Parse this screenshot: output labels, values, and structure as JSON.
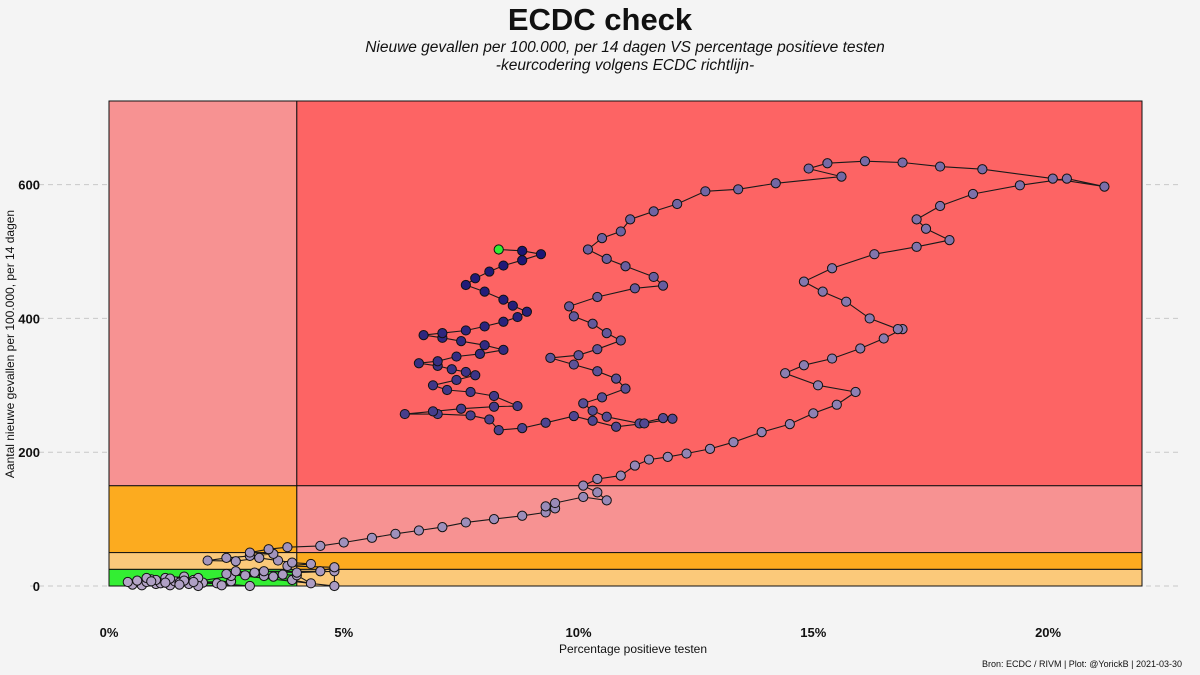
{
  "chart_data": {
    "type": "scatter",
    "title": "ECDC check",
    "subtitle_lines": [
      "Nieuwe gevallen per 100.000, per 14 dagen  VS  percentage positieve testen",
      "-keurcodering volgens ECDC richtlijn-"
    ],
    "xlabel": "Percentage positieve testen",
    "ylabel": "Aantal nieuwe gevallen per 100.000, per 14 dagen",
    "caption": "Bron: ECDC / RIVM | Plot: @YorickB |  2021-03-30",
    "xlim": [
      0,
      22
    ],
    "ylim": [
      0,
      725
    ],
    "x_ticks": [
      0,
      5,
      10,
      15,
      20
    ],
    "x_tick_labels": [
      "0%",
      "5%",
      "10%",
      "15%",
      "20%"
    ],
    "y_ticks": [
      0,
      200,
      400,
      600
    ],
    "y_tick_labels": [
      "0",
      "200",
      "400",
      "600"
    ],
    "grid": "horizontal dashed",
    "background_zones": [
      {
        "x": [
          0,
          4
        ],
        "y": [
          0,
          25
        ],
        "color": "#33ee33"
      },
      {
        "x": [
          0,
          4
        ],
        "y": [
          25,
          50
        ],
        "color": "#fbc97a"
      },
      {
        "x": [
          0,
          4
        ],
        "y": [
          50,
          150
        ],
        "color": "#fcab1f"
      },
      {
        "x": [
          0,
          4
        ],
        "y": [
          150,
          725
        ],
        "color": "#f79292"
      },
      {
        "x": [
          4,
          22
        ],
        "y": [
          0,
          25
        ],
        "color": "#fbc97a"
      },
      {
        "x": [
          4,
          22
        ],
        "y": [
          25,
          50
        ],
        "color": "#fcab1f"
      },
      {
        "x": [
          4,
          22
        ],
        "y": [
          50,
          150
        ],
        "color": "#f79292"
      },
      {
        "x": [
          4,
          22
        ],
        "y": [
          150,
          725
        ],
        "color": "#fd6464"
      }
    ],
    "point_color_start": "#b6a6c8",
    "point_color_end": "#1a1474",
    "latest_point_color": "#33ee33",
    "series": [
      {
        "points": [
          [
            0.5,
            2
          ],
          [
            0.7,
            1
          ],
          [
            1.0,
            3
          ],
          [
            1.3,
            1
          ],
          [
            0.6,
            8
          ],
          [
            0.9,
            10
          ],
          [
            1.2,
            12
          ],
          [
            1.6,
            14
          ],
          [
            0.8,
            6
          ],
          [
            1.4,
            7
          ],
          [
            1.8,
            9
          ],
          [
            2.0,
            5
          ],
          [
            1.1,
            4
          ],
          [
            0.4,
            6
          ],
          [
            1.7,
            3
          ],
          [
            2.3,
            4
          ],
          [
            2.6,
            7
          ],
          [
            1.5,
            5
          ],
          [
            1.9,
            12
          ],
          [
            1.0,
            9
          ],
          [
            1.3,
            11
          ],
          [
            0.8,
            12
          ],
          [
            1.6,
            8
          ],
          [
            3.0,
            0
          ],
          [
            2.4,
            1
          ],
          [
            1.9,
            0
          ],
          [
            1.5,
            2
          ],
          [
            1.2,
            5
          ],
          [
            0.9,
            7
          ],
          [
            1.8,
            6
          ],
          [
            2.6,
            15
          ],
          [
            3.1,
            20
          ],
          [
            2.7,
            22
          ],
          [
            3.5,
            14
          ],
          [
            3.9,
            9
          ],
          [
            4.3,
            4
          ],
          [
            4.0,
            16
          ],
          [
            3.7,
            17
          ],
          [
            3.3,
            15
          ],
          [
            2.9,
            16
          ],
          [
            2.5,
            18
          ],
          [
            4.8,
            0
          ],
          [
            4.8,
            22
          ],
          [
            4.0,
            20
          ],
          [
            3.3,
            22
          ],
          [
            4.5,
            22
          ],
          [
            4.8,
            28
          ],
          [
            3.8,
            30
          ],
          [
            4.3,
            33
          ],
          [
            3.9,
            35
          ],
          [
            3.6,
            38
          ],
          [
            3.2,
            42
          ],
          [
            2.7,
            37
          ],
          [
            2.1,
            38
          ],
          [
            2.5,
            42
          ],
          [
            3.0,
            45
          ],
          [
            3.5,
            48
          ],
          [
            3.0,
            50
          ],
          [
            3.4,
            55
          ],
          [
            3.8,
            58
          ],
          [
            4.5,
            60
          ],
          [
            5.0,
            65
          ],
          [
            5.6,
            72
          ],
          [
            6.1,
            78
          ],
          [
            6.6,
            83
          ],
          [
            7.1,
            88
          ],
          [
            7.6,
            95
          ],
          [
            8.2,
            100
          ],
          [
            8.8,
            105
          ],
          [
            9.3,
            110
          ],
          [
            9.5,
            116
          ],
          [
            9.3,
            119
          ],
          [
            9.5,
            124
          ],
          [
            10.1,
            133
          ],
          [
            10.6,
            128
          ],
          [
            10.4,
            140
          ],
          [
            10.1,
            150
          ],
          [
            10.4,
            160
          ],
          [
            10.9,
            165
          ],
          [
            11.2,
            180
          ],
          [
            11.5,
            189
          ],
          [
            11.9,
            193
          ],
          [
            12.3,
            198
          ],
          [
            12.8,
            205
          ],
          [
            13.3,
            215
          ],
          [
            13.9,
            230
          ],
          [
            14.5,
            242
          ],
          [
            15.0,
            258
          ],
          [
            15.5,
            271
          ],
          [
            15.9,
            290
          ],
          [
            15.1,
            300
          ],
          [
            14.4,
            318
          ],
          [
            14.8,
            330
          ],
          [
            15.4,
            340
          ],
          [
            16.0,
            355
          ],
          [
            16.5,
            370
          ],
          [
            16.9,
            384
          ],
          [
            16.8,
            384
          ],
          [
            16.2,
            400
          ],
          [
            15.7,
            425
          ],
          [
            15.2,
            440
          ],
          [
            14.8,
            455
          ],
          [
            15.4,
            475
          ],
          [
            16.3,
            496
          ],
          [
            17.2,
            507
          ],
          [
            17.9,
            517
          ],
          [
            17.4,
            534
          ],
          [
            17.2,
            548
          ],
          [
            17.7,
            568
          ],
          [
            18.4,
            586
          ],
          [
            19.4,
            599
          ],
          [
            20.4,
            609
          ],
          [
            21.2,
            597
          ],
          [
            20.1,
            609
          ],
          [
            18.6,
            623
          ],
          [
            17.7,
            627
          ],
          [
            16.9,
            633
          ],
          [
            16.1,
            635
          ],
          [
            15.3,
            632
          ],
          [
            14.9,
            624
          ],
          [
            15.6,
            612
          ],
          [
            14.2,
            602
          ],
          [
            13.4,
            593
          ],
          [
            12.7,
            590
          ],
          [
            12.1,
            571
          ],
          [
            11.6,
            560
          ],
          [
            11.1,
            548
          ],
          [
            10.9,
            530
          ],
          [
            10.5,
            520
          ],
          [
            10.2,
            503
          ],
          [
            10.6,
            489
          ],
          [
            11.0,
            478
          ],
          [
            11.6,
            462
          ],
          [
            11.8,
            449
          ],
          [
            11.2,
            445
          ],
          [
            10.4,
            432
          ],
          [
            9.8,
            418
          ],
          [
            9.9,
            403
          ],
          [
            10.3,
            392
          ],
          [
            10.6,
            378
          ],
          [
            10.9,
            367
          ],
          [
            10.4,
            354
          ],
          [
            10.0,
            345
          ],
          [
            9.4,
            341
          ],
          [
            9.9,
            331
          ],
          [
            10.4,
            321
          ],
          [
            10.8,
            310
          ],
          [
            11.0,
            295
          ],
          [
            10.5,
            282
          ],
          [
            10.1,
            273
          ],
          [
            10.3,
            262
          ],
          [
            10.6,
            253
          ],
          [
            11.3,
            243
          ],
          [
            11.8,
            251
          ]
        ]
      },
      {
        "points": [
          [
            12.0,
            250
          ],
          [
            11.4,
            243
          ],
          [
            10.8,
            238
          ],
          [
            10.3,
            247
          ],
          [
            9.9,
            254
          ],
          [
            9.3,
            244
          ],
          [
            8.8,
            236
          ],
          [
            8.3,
            233
          ],
          [
            8.1,
            249
          ],
          [
            7.7,
            255
          ],
          [
            7.0,
            257
          ],
          [
            6.3,
            257
          ],
          [
            6.9,
            261
          ],
          [
            7.5,
            265
          ],
          [
            8.2,
            268
          ],
          [
            8.7,
            269
          ],
          [
            8.2,
            284
          ],
          [
            7.7,
            290
          ],
          [
            7.2,
            293
          ],
          [
            6.9,
            300
          ],
          [
            7.4,
            308
          ],
          [
            7.8,
            315
          ],
          [
            7.6,
            320
          ],
          [
            7.3,
            324
          ],
          [
            7.0,
            329
          ],
          [
            6.6,
            333
          ],
          [
            7.0,
            336
          ],
          [
            7.4,
            343
          ],
          [
            7.9,
            347
          ],
          [
            8.4,
            353
          ],
          [
            8.0,
            360
          ],
          [
            7.5,
            366
          ],
          [
            7.1,
            371
          ],
          [
            6.7,
            375
          ],
          [
            7.1,
            378
          ],
          [
            7.6,
            382
          ],
          [
            8.0,
            388
          ],
          [
            8.4,
            395
          ],
          [
            8.7,
            402
          ],
          [
            8.9,
            410
          ],
          [
            8.6,
            419
          ],
          [
            8.4,
            428
          ],
          [
            8.0,
            440
          ],
          [
            7.6,
            450
          ],
          [
            7.8,
            460
          ],
          [
            8.1,
            470
          ],
          [
            8.4,
            479
          ],
          [
            8.8,
            487
          ],
          [
            9.2,
            496
          ],
          [
            8.8,
            501
          ],
          [
            8.3,
            503
          ]
        ]
      }
    ]
  }
}
